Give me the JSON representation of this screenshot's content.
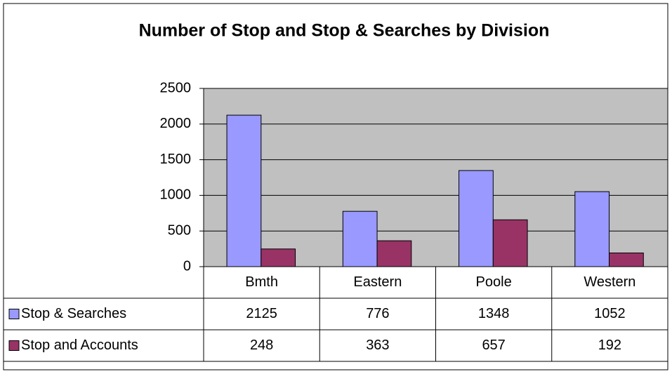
{
  "chart_data": {
    "type": "bar",
    "title": "Number of Stop and Stop & Searches by Division",
    "categories": [
      "Bmth",
      "Eastern",
      "Poole",
      "Western"
    ],
    "series": [
      {
        "name": "Stop & Searches",
        "color": "#9999ff",
        "values": [
          2125,
          776,
          1348,
          1052
        ]
      },
      {
        "name": "Stop and Accounts",
        "color": "#993366",
        "values": [
          248,
          363,
          657,
          192
        ]
      }
    ],
    "ylim": [
      0,
      2500
    ],
    "yticks": [
      0,
      500,
      1000,
      1500,
      2000,
      2500
    ],
    "grid": true,
    "plot_background": "#c0c0c0"
  }
}
